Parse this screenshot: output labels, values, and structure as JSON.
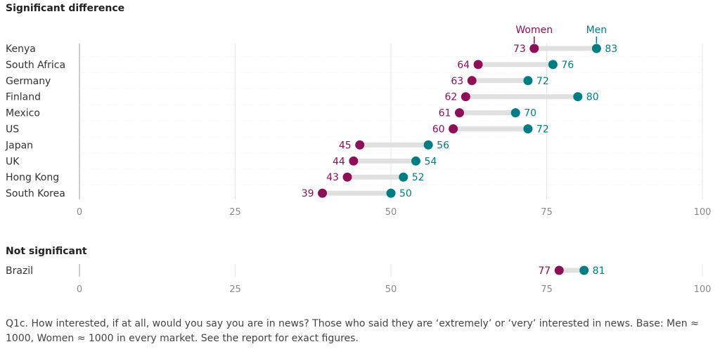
{
  "colors": {
    "women": "#8b0f59",
    "men": "#007c84",
    "connector": "#e0e0e0",
    "grid": "#e6e6e6",
    "zero_axis": "#999999"
  },
  "legend": {
    "women": "Women",
    "men": "Men"
  },
  "footnote": "Q1c. How interested, if at all, would you say you are in news? Those who said they are ‘extremely’ or ‘very’ interested in news. Base: Men ≈ 1000, Women ≈ 1000 in every market. See the report for exact figures.",
  "chart_data": [
    {
      "type": "dumbbell",
      "title": "Significant difference",
      "xlim": [
        0,
        100
      ],
      "xticks": [
        0,
        25,
        50,
        75,
        100
      ],
      "categories": [
        "Kenya",
        "South Africa",
        "Germany",
        "Finland",
        "Mexico",
        "US",
        "Japan",
        "UK",
        "Hong Kong",
        "South Korea"
      ],
      "series": [
        {
          "name": "Women",
          "values": [
            73,
            64,
            63,
            62,
            61,
            60,
            45,
            44,
            43,
            39
          ]
        },
        {
          "name": "Men",
          "values": [
            83,
            76,
            72,
            80,
            70,
            72,
            56,
            54,
            52,
            50
          ]
        }
      ]
    },
    {
      "type": "dumbbell",
      "title": "Not significant",
      "xlim": [
        0,
        100
      ],
      "xticks": [
        0,
        25,
        50,
        75,
        100
      ],
      "categories": [
        "Brazil"
      ],
      "series": [
        {
          "name": "Women",
          "values": [
            77
          ]
        },
        {
          "name": "Men",
          "values": [
            81
          ]
        }
      ]
    }
  ]
}
